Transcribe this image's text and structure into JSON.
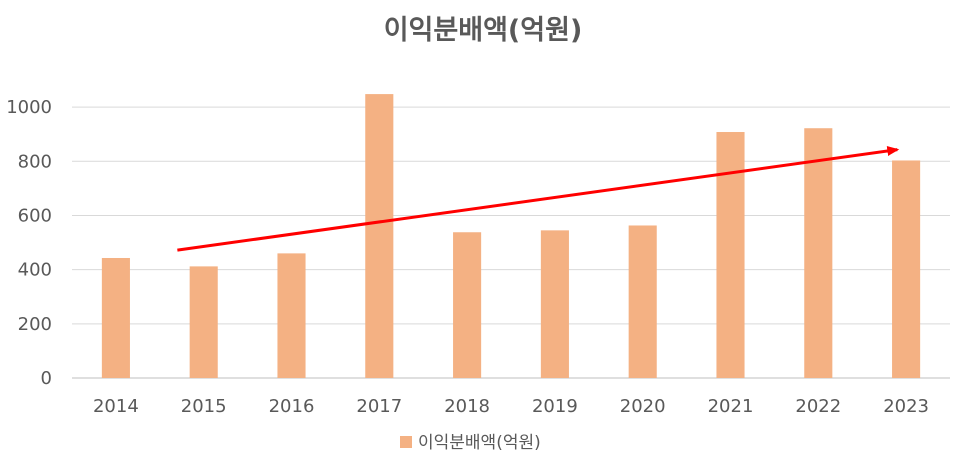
{
  "chart_data": {
    "type": "bar",
    "title": "이익분배액(억원)",
    "categories": [
      "2014",
      "2015",
      "2016",
      "2017",
      "2018",
      "2019",
      "2020",
      "2021",
      "2022",
      "2023"
    ],
    "series": [
      {
        "name": "이익분배액(억원)",
        "values": [
          443,
          412,
          460,
          1048,
          538,
          545,
          563,
          908,
          922,
          803
        ],
        "color": "#F4B183"
      }
    ],
    "ylim": [
      0,
      1100
    ],
    "yticks": [
      0,
      200,
      400,
      600,
      800,
      1000
    ],
    "xlabel": "",
    "ylabel": "",
    "grid": true,
    "legend": {
      "position": "bottom",
      "label": "이익분배액(억원)"
    },
    "trend_arrow": {
      "color": "#FF0000",
      "from_index": 0.7,
      "from_value": 472,
      "to_index": 8.9,
      "to_value": 843
    }
  }
}
